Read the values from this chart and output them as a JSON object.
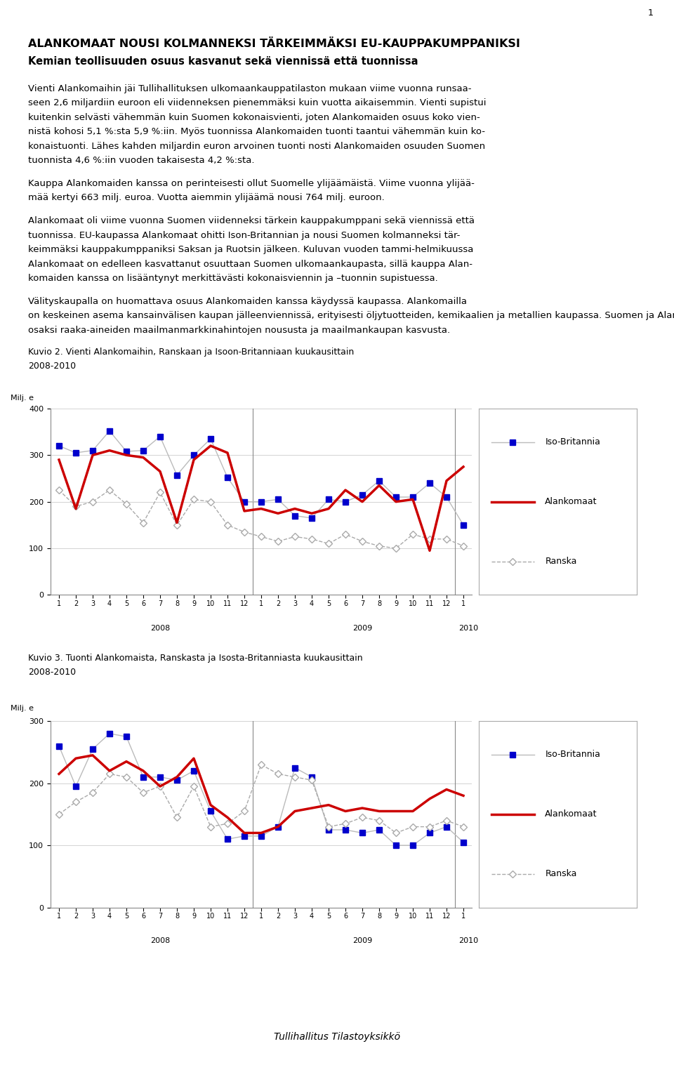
{
  "page_number": "1",
  "title_line1": "ALANKOMAAT NOUSI KOLMANNEKSI TÄRKEIMMÄKSI EU-KAUPPAKUMPPANIKSI",
  "title_line2": "Kemian teollisuuden osuus kasvanut sekä viennissä että tuonnissa",
  "para1_lines": [
    "Vienti Alankomaihin jäi Tullihallituksen ulkomaankauppatilaston mukaan viime vuonna runsaa-",
    "seen 2,6 miljardiin euroon eli viidenneksen pienemmäksi kuin vuotta aikaisemmin. Vienti supistui",
    "kuitenkin selvästi vähemmän kuin Suomen kokonaisvienti, joten Alankomaiden osuus koko vien-",
    "nistä kohosi 5,1 %:sta 5,9 %:iin. Myös tuonnissa Alankomaiden tuonti taantui vähemmän kuin ko-",
    "konaistuonti. Lähes kahden miljardin euron arvoinen tuonti nosti Alankomaiden osuuden Suomen",
    "tuonnista 4,6 %:iin vuoden takaisesta 4,2 %:sta."
  ],
  "para2_lines": [
    "Kauppa Alankomaiden kanssa on perinteisesti ollut Suomelle ylijäämäistä. Viime vuonna ylijää-",
    "mää kertyi 663 milj. euroa. Vuotta aiemmin ylijäämä nousi 764 milj. euroon."
  ],
  "para3_lines": [
    "Alankomaat oli viime vuonna Suomen viidenneksi tärkein kauppakumppani sekä viennissä että",
    "tuonnissa. EU-kaupassa Alankomaat ohitti Ison-Britannian ja nousi Suomen kolmanneksi tär-",
    "keimmäksi kauppakumppaniksi Saksan ja Ruotsin jälkeen. Kuluvan vuoden tammi-helmikuussa",
    "Alankomaat on edelleen kasvattanut osuuttaan Suomen ulkomaankaupasta, sillä kauppa Alan-",
    "komaiden kanssa on lisääntynyt merkittävästi kokonaisviennin ja –tuonnin supistuessa."
  ],
  "para4_lines": [
    "Välityskaupalla on huomattava osuus Alankomaiden kanssa käydyssä kaupassa. Alankomailla",
    "on keskeinen asema kansainvälisen kaupan jälleenviennissä, erityisesti öljytuotteiden, kemikaalien ja metallien kaupassa. Suomen ja Alankomaiden välisen kaupan kasvuluvut johtuvat siis",
    "osaksi raaka-aineiden maailmanmarkkinahintojen noususta ja maailmankaupan kasvusta."
  ],
  "kuvio2_title": "Kuvio 2. Vienti Alankomaihin, Ranskaan ja Isoon-Britanniaan kuukausittain",
  "kuvio2_subtitle": "2008-2010",
  "kuvio2_ylabel": "Milj. e",
  "kuvio2_ylim": [
    0,
    400
  ],
  "kuvio2_yticks": [
    0,
    100,
    200,
    300,
    400
  ],
  "kuvio2_iso_britannia": [
    320,
    305,
    310,
    352,
    308,
    310,
    340,
    257,
    300,
    335,
    252,
    200,
    200,
    205,
    170,
    165,
    205,
    200,
    215,
    245,
    210,
    210,
    240,
    210,
    150
  ],
  "kuvio2_alankomaat": [
    290,
    185,
    300,
    310,
    300,
    295,
    265,
    155,
    290,
    320,
    305,
    180,
    185,
    175,
    185,
    175,
    185,
    225,
    200,
    235,
    200,
    205,
    95,
    245,
    275
  ],
  "kuvio2_ranska": [
    225,
    190,
    200,
    225,
    195,
    155,
    220,
    150,
    205,
    200,
    150,
    135,
    125,
    115,
    125,
    120,
    110,
    130,
    115,
    105,
    100,
    130,
    120,
    120,
    105
  ],
  "kuvio3_title": "Kuvio 3. Tuonti Alankomaista, Ranskasta ja Isosta-Britanniasta kuukausittain",
  "kuvio3_subtitle": "2008-2010",
  "kuvio3_ylabel": "Milj. e",
  "kuvio3_ylim": [
    0,
    300
  ],
  "kuvio3_yticks": [
    0,
    100,
    200,
    300
  ],
  "kuvio3_iso_britannia": [
    260,
    195,
    255,
    280,
    275,
    210,
    210,
    205,
    220,
    155,
    110,
    115,
    115,
    130,
    225,
    210,
    125,
    125,
    120,
    125,
    100,
    100,
    120,
    130,
    105
  ],
  "kuvio3_alankomaat": [
    215,
    240,
    245,
    220,
    235,
    220,
    195,
    210,
    240,
    165,
    145,
    120,
    120,
    130,
    155,
    160,
    165,
    155,
    160,
    155,
    155,
    155,
    175,
    190,
    180
  ],
  "kuvio3_ranska": [
    150,
    170,
    185,
    215,
    210,
    185,
    195,
    145,
    195,
    130,
    135,
    155,
    230,
    215,
    210,
    205,
    130,
    135,
    145,
    140,
    120,
    130,
    130,
    140,
    130
  ],
  "footer": "Tullihallitus Tilastoyksikkö",
  "color_iso_britannia": "#0000CC",
  "color_alankomaat": "#CC0000",
  "color_ranska": "#aaaaaa",
  "background_color": "#ffffff"
}
